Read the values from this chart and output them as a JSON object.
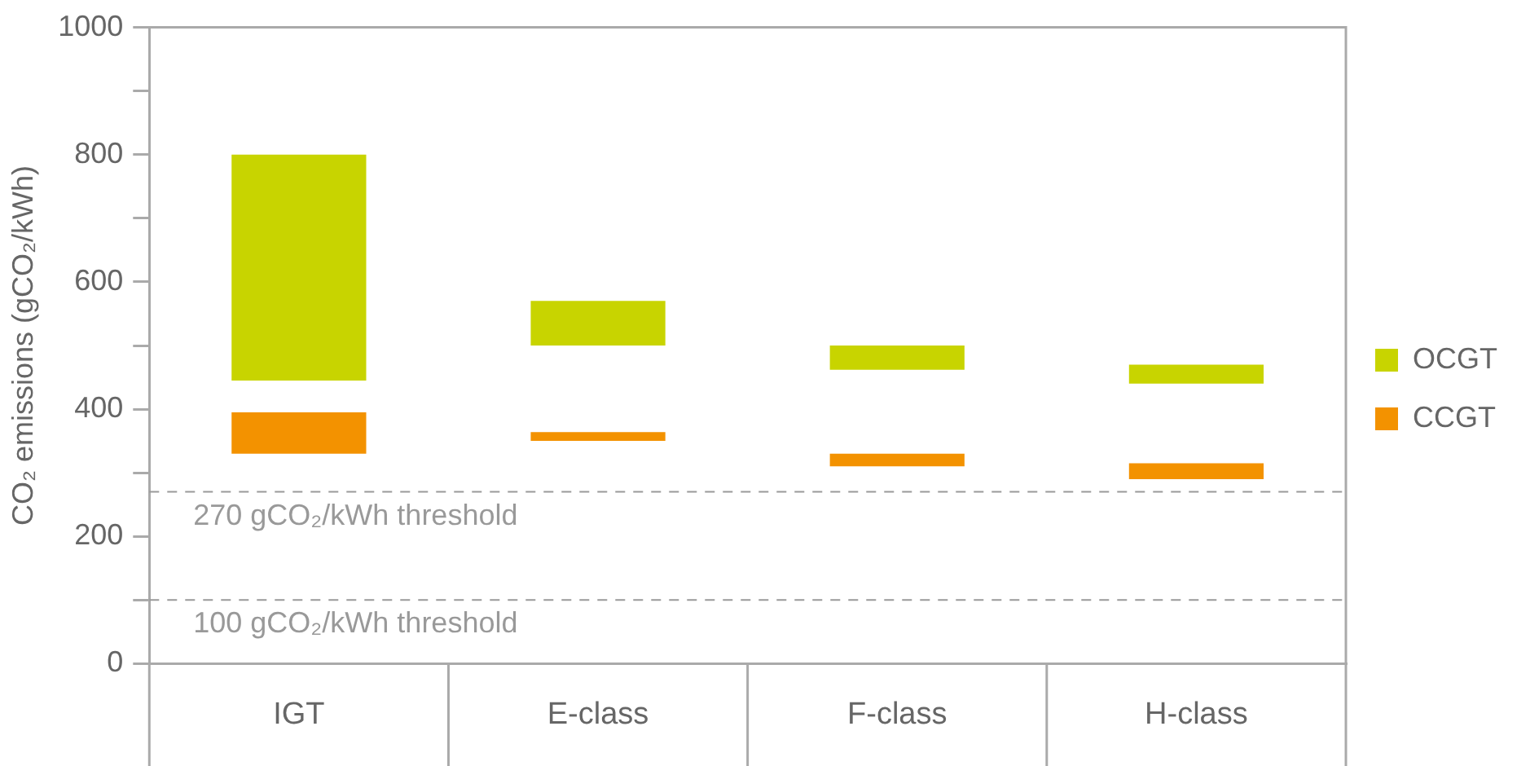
{
  "chart_data": {
    "type": "bar",
    "ylabel": "CO₂ emissions (gCO₂/kWh)",
    "categories": [
      "IGT",
      "E-class",
      "F-class",
      "H-class"
    ],
    "series": [
      {
        "name": "OCGT",
        "color": "#c8d400",
        "base": [
          445,
          500,
          462,
          440
        ],
        "values": [
          355,
          70,
          38,
          30
        ]
      },
      {
        "name": "CCGT",
        "color": "#f39200",
        "base": [
          330,
          350,
          310,
          290
        ],
        "values": [
          65,
          14,
          20,
          25
        ]
      }
    ],
    "ylim": [
      0,
      1000
    ],
    "yticks": [
      0,
      {
        "value": 100,
        "label": null
      },
      200,
      {
        "value": 300,
        "label": null
      },
      400,
      {
        "value": 500,
        "label": null
      },
      600,
      {
        "value": 700,
        "label": null
      },
      800,
      {
        "value": 900,
        "label": null
      },
      1000
    ],
    "ref_lines": [
      {
        "axis": "y",
        "value": 270,
        "label": "270 gCO₂/kWh threshold",
        "color": "#999999",
        "line_style": "dashed"
      },
      {
        "axis": "y",
        "value": 100,
        "label": "100 gCO₂/kWh threshold",
        "color": "#999999",
        "line_style": "dashed"
      }
    ],
    "grid": false,
    "legend": "right"
  }
}
